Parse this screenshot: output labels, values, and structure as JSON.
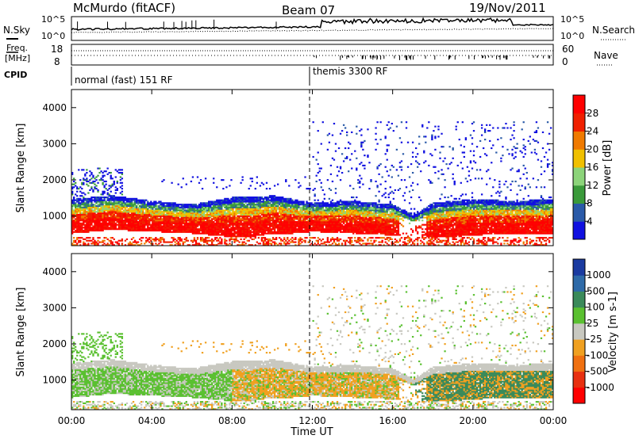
{
  "header": {
    "station": "McMurdo (fitACF)",
    "beam": "Beam 07",
    "date": "19/Nov/2011"
  },
  "noise_panel": {
    "left_label": "N.Sky",
    "right_label": "N.Search",
    "y_top": "10^5",
    "y_bottom": "10^0",
    "right_y_top": "10^5",
    "right_y_bottom": "10^0"
  },
  "freq_panel": {
    "left_label_1": "Freq.",
    "left_label_2": "[MHz]",
    "left_top": "18",
    "left_bottom": "8",
    "right_label": "Nave",
    "right_top": "60",
    "right_bottom": "0"
  },
  "cpid_panel": {
    "label": "CPID",
    "modes": [
      "normal (fast) 151 RF",
      "themis 3300 RF"
    ]
  },
  "x_axis": {
    "label": "Time UT",
    "ticks": [
      "00:00",
      "04:00",
      "08:00",
      "12:00",
      "16:00",
      "20:00",
      "00:00"
    ]
  },
  "power_panel": {
    "ylabel": "Slant Range [km]",
    "yticks": [
      "1000",
      "2000",
      "3000",
      "4000"
    ],
    "colorbar_label": "Power [dB]",
    "colorbar_ticks": [
      "4",
      "8",
      "12",
      "16",
      "20",
      "24",
      "28"
    ],
    "colors": [
      "#1010e0",
      "#2a5aa8",
      "#3a9a3a",
      "#8cd47a",
      "#f0c000",
      "#f07a00",
      "#f02000",
      "#ff0000"
    ]
  },
  "velocity_panel": {
    "ylabel": "Slant Range [km]",
    "yticks": [
      "1000",
      "2000",
      "3000",
      "4000"
    ],
    "colorbar_label": "Velocity [m s-1]",
    "colorbar_ticks": [
      "1000",
      "500",
      "100",
      "25",
      "-25",
      "-100",
      "-500",
      "-1000"
    ],
    "colors": [
      "#1a3aa0",
      "#2e6aa8",
      "#3a8a5a",
      "#5ac030",
      "#c8c8c0",
      "#f0a020",
      "#f07010",
      "#e83010",
      "#ff0000"
    ]
  },
  "chart_data": [
    {
      "type": "heatmap",
      "title": "Power",
      "xlabel": "Time UT",
      "ylabel": "Slant Range [km]",
      "xlim": [
        "00:00",
        "24:00"
      ],
      "ylim": [
        180,
        4500
      ],
      "colorbar": {
        "label": "Power [dB]",
        "range": [
          0,
          30
        ],
        "ticks": [
          4,
          8,
          12,
          16,
          20,
          24,
          28
        ]
      },
      "main_band": {
        "hour": [
          0,
          2,
          4,
          6,
          8,
          9,
          10,
          11,
          12,
          14,
          16,
          17,
          18,
          20,
          22,
          24
        ],
        "range_lower_km": [
          500,
          600,
          550,
          500,
          400,
          400,
          500,
          500,
          550,
          500,
          450,
          400,
          350,
          450,
          500,
          500
        ],
        "range_upper_km": [
          1450,
          1550,
          1400,
          1300,
          1500,
          1500,
          1550,
          1450,
          1350,
          1400,
          1300,
          1000,
          1350,
          1450,
          1400,
          1450
        ]
      }
    },
    {
      "type": "heatmap",
      "title": "Velocity",
      "xlabel": "Time UT",
      "ylabel": "Slant Range [km]",
      "xlim": [
        "00:00",
        "24:00"
      ],
      "ylim": [
        180,
        4500
      ],
      "colorbar": {
        "label": "Velocity [m s-1]",
        "ticks": [
          1000,
          500,
          100,
          25,
          -25,
          -100,
          -500,
          -1000
        ]
      }
    }
  ]
}
